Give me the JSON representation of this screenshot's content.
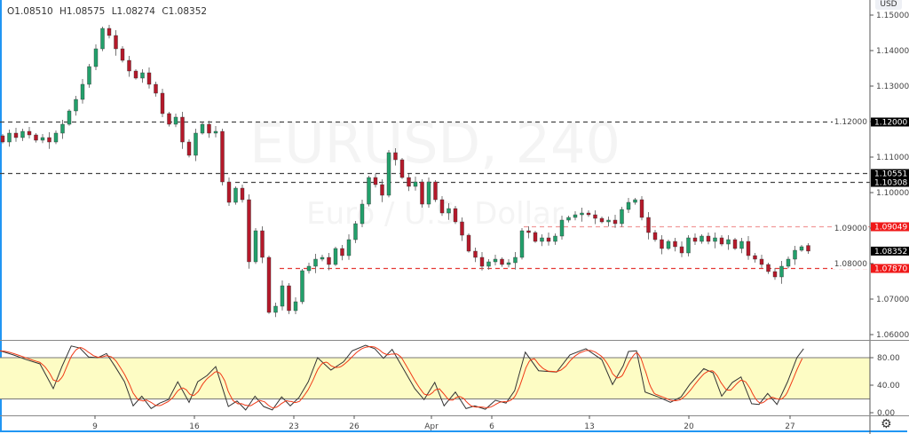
{
  "legend": {
    "open": "O1.08510",
    "high": "H1.08575",
    "low": "L1.08274",
    "close": "C1.08352"
  },
  "currency_label": "USD",
  "watermark": {
    "symbol": "EURUSD, 240",
    "description": "Euro / U.S. Dollar"
  },
  "colors": {
    "up": "#22a06b",
    "down": "#b5192a",
    "wick": "#555555",
    "band": "#fdfcc4",
    "stoch_k": "#333333",
    "stoch_d": "#f03a17",
    "border": "#2196f3",
    "support_red": "#e53935"
  },
  "price_axis": {
    "ticks": [
      "1.15000",
      "1.14000",
      "1.13000",
      "1.12000",
      "1.11000",
      "1.10000",
      "1.09000",
      "1.08000",
      "1.07000",
      "1.06000"
    ]
  },
  "stoch_axis": {
    "ticks": [
      "80.00",
      "40.00",
      "0.00"
    ],
    "upper_band": 80,
    "lower_band": 20
  },
  "time_axis": {
    "ticks": [
      "9",
      "16",
      "23",
      "26",
      "Apr",
      "6",
      "13",
      "20",
      "27"
    ]
  },
  "levels": [
    {
      "price": 1.12,
      "label": "1.12000",
      "style": "black"
    },
    {
      "price": 1.10551,
      "label": "1.10551",
      "style": "black"
    },
    {
      "price": 1.10308,
      "label": "1.10308",
      "style": "black"
    },
    {
      "price": 1.09049,
      "label": "1.09049",
      "style": "red-light"
    },
    {
      "price": 1.0787,
      "label": "1.07870",
      "style": "red"
    }
  ],
  "last_price": {
    "price": 1.08352,
    "label": "1.08352"
  },
  "chart_data": {
    "type": "candlestick",
    "timeframe": "240",
    "first_open": 1.116,
    "last_candle": {
      "open": 1.0851,
      "high": 1.08575,
      "low": 1.08274,
      "close": 1.08352
    },
    "closes": [
      1.11425,
      1.11675,
      1.1155,
      1.11725,
      1.11625,
      1.11475,
      1.1155,
      1.11425,
      1.11675,
      1.11925,
      1.123,
      1.12625,
      1.1305,
      1.1355,
      1.1405,
      1.14625,
      1.14425,
      1.1405,
      1.13725,
      1.13425,
      1.13225,
      1.13375,
      1.1305,
      1.128,
      1.12225,
      1.11925,
      1.12125,
      1.11425,
      1.1105,
      1.11675,
      1.11925,
      1.11675,
      1.11725,
      1.103,
      1.09725,
      1.10125,
      1.098,
      1.0805,
      1.08925,
      1.08175,
      1.06625,
      1.068,
      1.07375,
      1.06675,
      1.06925,
      1.078,
      1.07925,
      1.08125,
      1.08175,
      1.07975,
      1.08425,
      1.08225,
      1.08675,
      1.09125,
      1.09675,
      1.10425,
      1.10225,
      1.09925,
      1.11125,
      1.10925,
      1.10425,
      1.10175,
      1.103,
      1.09675,
      1.103,
      1.098,
      1.09425,
      1.0955,
      1.09175,
      1.088,
      1.0835,
      1.08175,
      1.07925,
      1.0805,
      1.08125,
      1.07975,
      1.08025,
      1.08175,
      1.08925,
      1.08875,
      1.08625,
      1.08725,
      1.08625,
      1.08775,
      1.09225,
      1.093,
      1.09375,
      1.09425,
      1.09375,
      1.09275,
      1.09175,
      1.09225,
      1.09125,
      1.09525,
      1.09725,
      1.098,
      1.093,
      1.08875,
      1.08675,
      1.08425,
      1.08625,
      1.08475,
      1.083,
      1.08725,
      1.08625,
      1.08775,
      1.08625,
      1.08725,
      1.0855,
      1.08675,
      1.08425,
      1.08625,
      1.08225,
      1.08125,
      1.07975,
      1.07775,
      1.07625,
      1.07925,
      1.08125,
      1.08375,
      1.08475,
      1.08352
    ],
    "price_range": [
      1.0575,
      1.1545
    ],
    "stochastic": {
      "range": [
        0,
        100
      ],
      "k": [
        [
          -0.4,
          90
        ],
        [
          1.6,
          84
        ],
        [
          3.6,
          77
        ],
        [
          5.6,
          71
        ],
        [
          7.6,
          35
        ],
        [
          8.9,
          67
        ],
        [
          10.3,
          97
        ],
        [
          11.6,
          94
        ],
        [
          12.9,
          81
        ],
        [
          14.3,
          80
        ],
        [
          15.6,
          86
        ],
        [
          16.9,
          67
        ],
        [
          18.3,
          45
        ],
        [
          19.6,
          10
        ],
        [
          20.9,
          24
        ],
        [
          22.3,
          6
        ],
        [
          23.6,
          14
        ],
        [
          24.9,
          19
        ],
        [
          26.3,
          45
        ],
        [
          28,
          15
        ],
        [
          29.3,
          45
        ],
        [
          30.7,
          54
        ],
        [
          32,
          67
        ],
        [
          33.9,
          9
        ],
        [
          35.2,
          17
        ],
        [
          36.5,
          4
        ],
        [
          37.9,
          24
        ],
        [
          39.2,
          9
        ],
        [
          40.5,
          4
        ],
        [
          41.9,
          23
        ],
        [
          43.2,
          10
        ],
        [
          44.5,
          22
        ],
        [
          45.9,
          45
        ],
        [
          47.3,
          80
        ],
        [
          49.3,
          62
        ],
        [
          51.2,
          74
        ],
        [
          52.5,
          90
        ],
        [
          54.5,
          98
        ],
        [
          55.9,
          93
        ],
        [
          57.2,
          79
        ],
        [
          58.5,
          92
        ],
        [
          60,
          67
        ],
        [
          61.9,
          35
        ],
        [
          63.3,
          19
        ],
        [
          64.9,
          44
        ],
        [
          66.3,
          10
        ],
        [
          68,
          30
        ],
        [
          69.6,
          6
        ],
        [
          70.9,
          10
        ],
        [
          72.5,
          5
        ],
        [
          74,
          18
        ],
        [
          75.6,
          14
        ],
        [
          76.9,
          32
        ],
        [
          78.5,
          88
        ],
        [
          80.5,
          61
        ],
        [
          83.2,
          59
        ],
        [
          85.2,
          84
        ],
        [
          87.6,
          93
        ],
        [
          90,
          77
        ],
        [
          91.6,
          41
        ],
        [
          93.2,
          68
        ],
        [
          94,
          89
        ],
        [
          95.2,
          90
        ],
        [
          96.5,
          30
        ],
        [
          98.7,
          22
        ],
        [
          100.3,
          15
        ],
        [
          101.9,
          23
        ],
        [
          103.2,
          41
        ],
        [
          105.3,
          64
        ],
        [
          106.7,
          58
        ],
        [
          108,
          24
        ],
        [
          109.6,
          44
        ],
        [
          110.9,
          52
        ],
        [
          112.5,
          13
        ],
        [
          113.6,
          12
        ],
        [
          114.9,
          28
        ],
        [
          116.3,
          12
        ],
        [
          117.9,
          45
        ],
        [
          119.3,
          80
        ],
        [
          120.3,
          93
        ]
      ]
    }
  }
}
